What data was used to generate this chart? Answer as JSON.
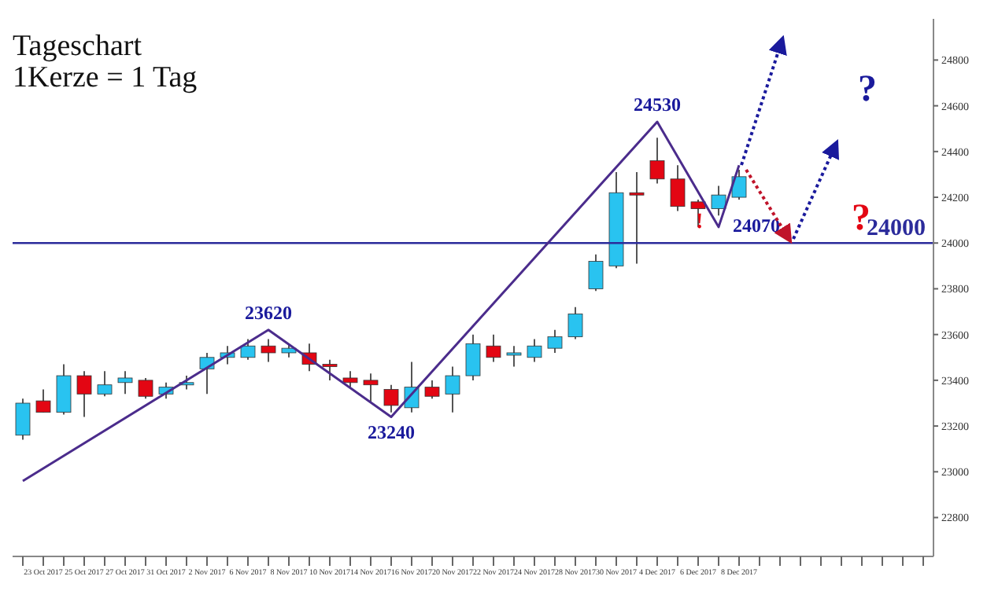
{
  "chart_data": {
    "type": "candlestick",
    "title": "Tageschart",
    "subtitle": "1Kerze = 1 Tag",
    "categories": [
      null,
      "23 Oct 2017",
      null,
      "25 Oct 2017",
      null,
      "27 Oct 2017",
      null,
      "31 Oct 2017",
      null,
      "2 Nov 2017",
      null,
      "6 Nov 2017",
      null,
      "8 Nov 2017",
      null,
      "10 Nov 2017",
      null,
      "14 Nov 2017",
      null,
      "16 Nov 2017",
      null,
      "20 Nov 2017",
      null,
      "22 Nov 2017",
      null,
      "24 Nov 2017",
      null,
      "28 Nov 2017",
      null,
      "30 Nov 2017",
      null,
      "4 Dec 2017",
      null,
      "6 Dec 2017",
      null,
      "8 Dec 2017",
      null,
      null,
      null,
      null,
      null,
      null,
      null,
      null,
      null
    ],
    "ohlc": [
      [
        23160,
        23320,
        23140,
        23300
      ],
      [
        23310,
        23360,
        23260,
        23260
      ],
      [
        23260,
        23470,
        23250,
        23420
      ],
      [
        23420,
        23440,
        23240,
        23340
      ],
      [
        23340,
        23440,
        23330,
        23380
      ],
      [
        23390,
        23440,
        23340,
        23410
      ],
      [
        23400,
        23410,
        23320,
        23330
      ],
      [
        23340,
        23390,
        23320,
        23370
      ],
      [
        23380,
        23420,
        23360,
        23390
      ],
      [
        23450,
        23520,
        23340,
        23500
      ],
      [
        23500,
        23550,
        23470,
        23520
      ],
      [
        23500,
        23580,
        23490,
        23550
      ],
      [
        23550,
        23580,
        23480,
        23520
      ],
      [
        23520,
        23560,
        23500,
        23540
      ],
      [
        23520,
        23560,
        23440,
        23470
      ],
      [
        23470,
        23490,
        23400,
        23460
      ],
      [
        23410,
        23440,
        23370,
        23390
      ],
      [
        23400,
        23430,
        23300,
        23380
      ],
      [
        23360,
        23380,
        23260,
        23290
      ],
      [
        23280,
        23480,
        23260,
        23370
      ],
      [
        23370,
        23400,
        23320,
        23330
      ],
      [
        23340,
        23460,
        23260,
        23420
      ],
      [
        23420,
        23600,
        23400,
        23560
      ],
      [
        23550,
        23600,
        23480,
        23500
      ],
      [
        23510,
        23550,
        23460,
        23520
      ],
      [
        23500,
        23580,
        23480,
        23550
      ],
      [
        23540,
        23620,
        23520,
        23590
      ],
      [
        23590,
        23720,
        23580,
        23690
      ],
      [
        23800,
        23950,
        23790,
        23920
      ],
      [
        23900,
        24310,
        23890,
        24220
      ],
      [
        24220,
        24310,
        23910,
        24210
      ],
      [
        24360,
        24460,
        24260,
        24280
      ],
      [
        24280,
        24340,
        24140,
        24160
      ],
      [
        24180,
        24190,
        24070,
        24150
      ],
      [
        24150,
        24250,
        24120,
        24210
      ],
      [
        24200,
        24320,
        24190,
        24290
      ],
      null,
      null,
      null,
      null,
      null,
      null,
      null,
      null,
      null
    ],
    "colors": [
      "#29c3f0",
      "#e30613",
      "#29c3f0",
      "#e30613",
      "#29c3f0",
      "#29c3f0",
      "#e30613",
      "#29c3f0",
      "#29c3f0",
      "#29c3f0",
      "#29c3f0",
      "#29c3f0",
      "#e30613",
      "#29c3f0",
      "#e30613",
      "#e30613",
      "#e30613",
      "#e30613",
      "#e30613",
      "#29c3f0",
      "#e30613",
      "#29c3f0",
      "#29c3f0",
      "#e30613",
      "#29c3f0",
      "#29c3f0",
      "#29c3f0",
      "#29c3f0",
      "#29c3f0",
      "#29c3f0",
      "#e30613",
      "#e30613",
      "#e30613",
      "#e30613",
      "#29c3f0",
      "#29c3f0",
      null,
      null,
      null,
      null,
      null,
      null,
      null,
      null,
      null
    ],
    "series": [
      {
        "type": "line",
        "color": "#4b2c8c",
        "values": [
          22960,
          null,
          null,
          null,
          null,
          null,
          null,
          null,
          null,
          null,
          null,
          null,
          23620,
          null,
          null,
          null,
          null,
          null,
          23240,
          null,
          null,
          null,
          null,
          null,
          null,
          null,
          null,
          null,
          null,
          null,
          null,
          24530,
          null,
          null,
          24070,
          24340,
          null,
          null,
          null,
          null,
          null,
          null,
          null,
          null,
          null
        ],
        "value_labels": [
          null,
          null,
          null,
          null,
          null,
          null,
          null,
          null,
          null,
          null,
          null,
          null,
          "23620",
          null,
          null,
          null,
          null,
          null,
          "23240",
          null,
          null,
          null,
          null,
          null,
          null,
          null,
          null,
          null,
          null,
          null,
          null,
          "24530",
          null,
          null,
          "24070",
          null,
          null,
          null,
          null,
          null,
          null,
          null,
          null,
          null,
          null
        ]
      }
    ],
    "ref_lines": [
      {
        "axis": "y",
        "value": 24000,
        "label": "24000",
        "color": "#2b2b9b"
      }
    ],
    "annotations": [
      "?",
      "?",
      "!"
    ],
    "ylim": [
      22630,
      24980
    ],
    "yticks": [
      22800,
      23000,
      23200,
      23400,
      23600,
      23800,
      24000,
      24200,
      24400,
      24600,
      24800
    ]
  }
}
